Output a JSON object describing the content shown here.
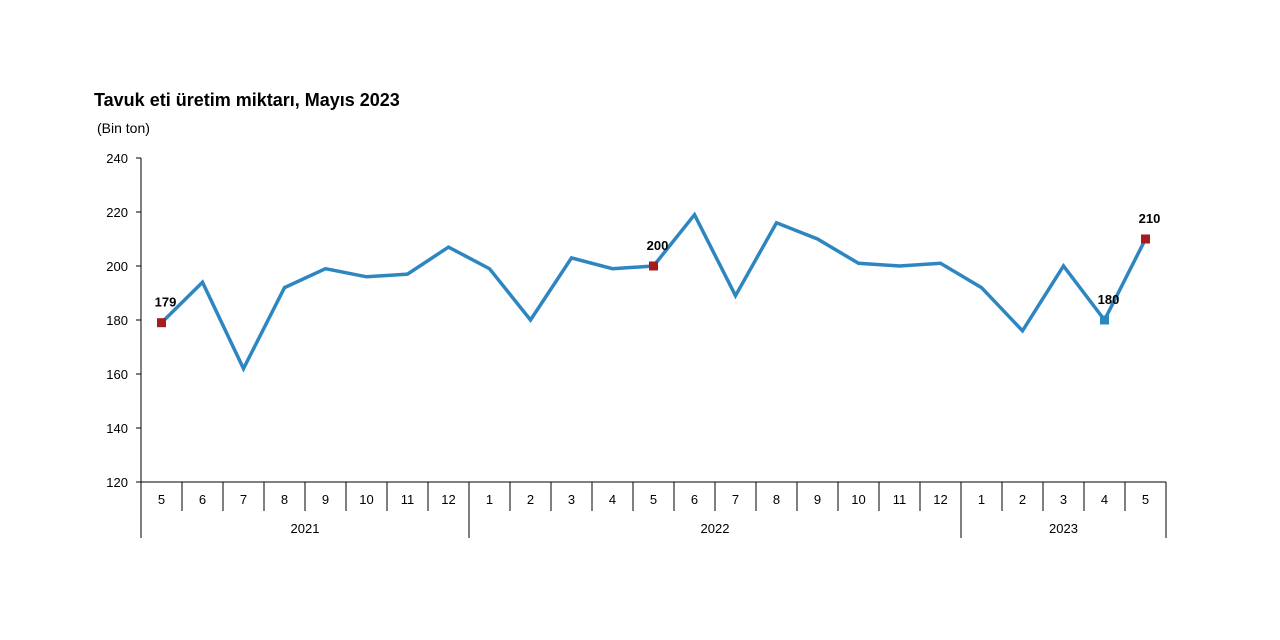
{
  "chart_data": {
    "type": "line",
    "title": "Tavuk eti üretim miktarı, Mayıs 2023",
    "unit_label": "(Bin ton)",
    "ylim": [
      120,
      240
    ],
    "yticks": [
      "120",
      "140",
      "160",
      "180",
      "200",
      "220",
      "240"
    ],
    "categories": [
      "5",
      "6",
      "7",
      "8",
      "9",
      "10",
      "11",
      "12",
      "1",
      "2",
      "3",
      "4",
      "5",
      "6",
      "7",
      "8",
      "9",
      "10",
      "11",
      "12",
      "1",
      "2",
      "3",
      "4",
      "5"
    ],
    "years": [
      {
        "label": "2021",
        "count": 8
      },
      {
        "label": "2022",
        "count": 12
      },
      {
        "label": "2023",
        "count": 5
      }
    ],
    "series": [
      {
        "values": [
          179,
          194,
          162,
          192,
          199,
          196,
          197,
          207,
          199,
          180,
          203,
          199,
          200,
          219,
          189,
          216,
          210,
          201,
          200,
          201,
          192,
          176,
          200,
          180,
          210
        ],
        "color": "#2e86c1"
      }
    ],
    "annotations": [
      {
        "index": 0,
        "text": "179",
        "marker_color": "#a61c1c"
      },
      {
        "index": 12,
        "text": "200",
        "marker_color": "#a61c1c"
      },
      {
        "index": 23,
        "text": "180",
        "marker_color": "#2e86c1"
      },
      {
        "index": 24,
        "text": "210",
        "marker_color": "#a61c1c"
      }
    ],
    "grid": false,
    "legend": "none"
  }
}
